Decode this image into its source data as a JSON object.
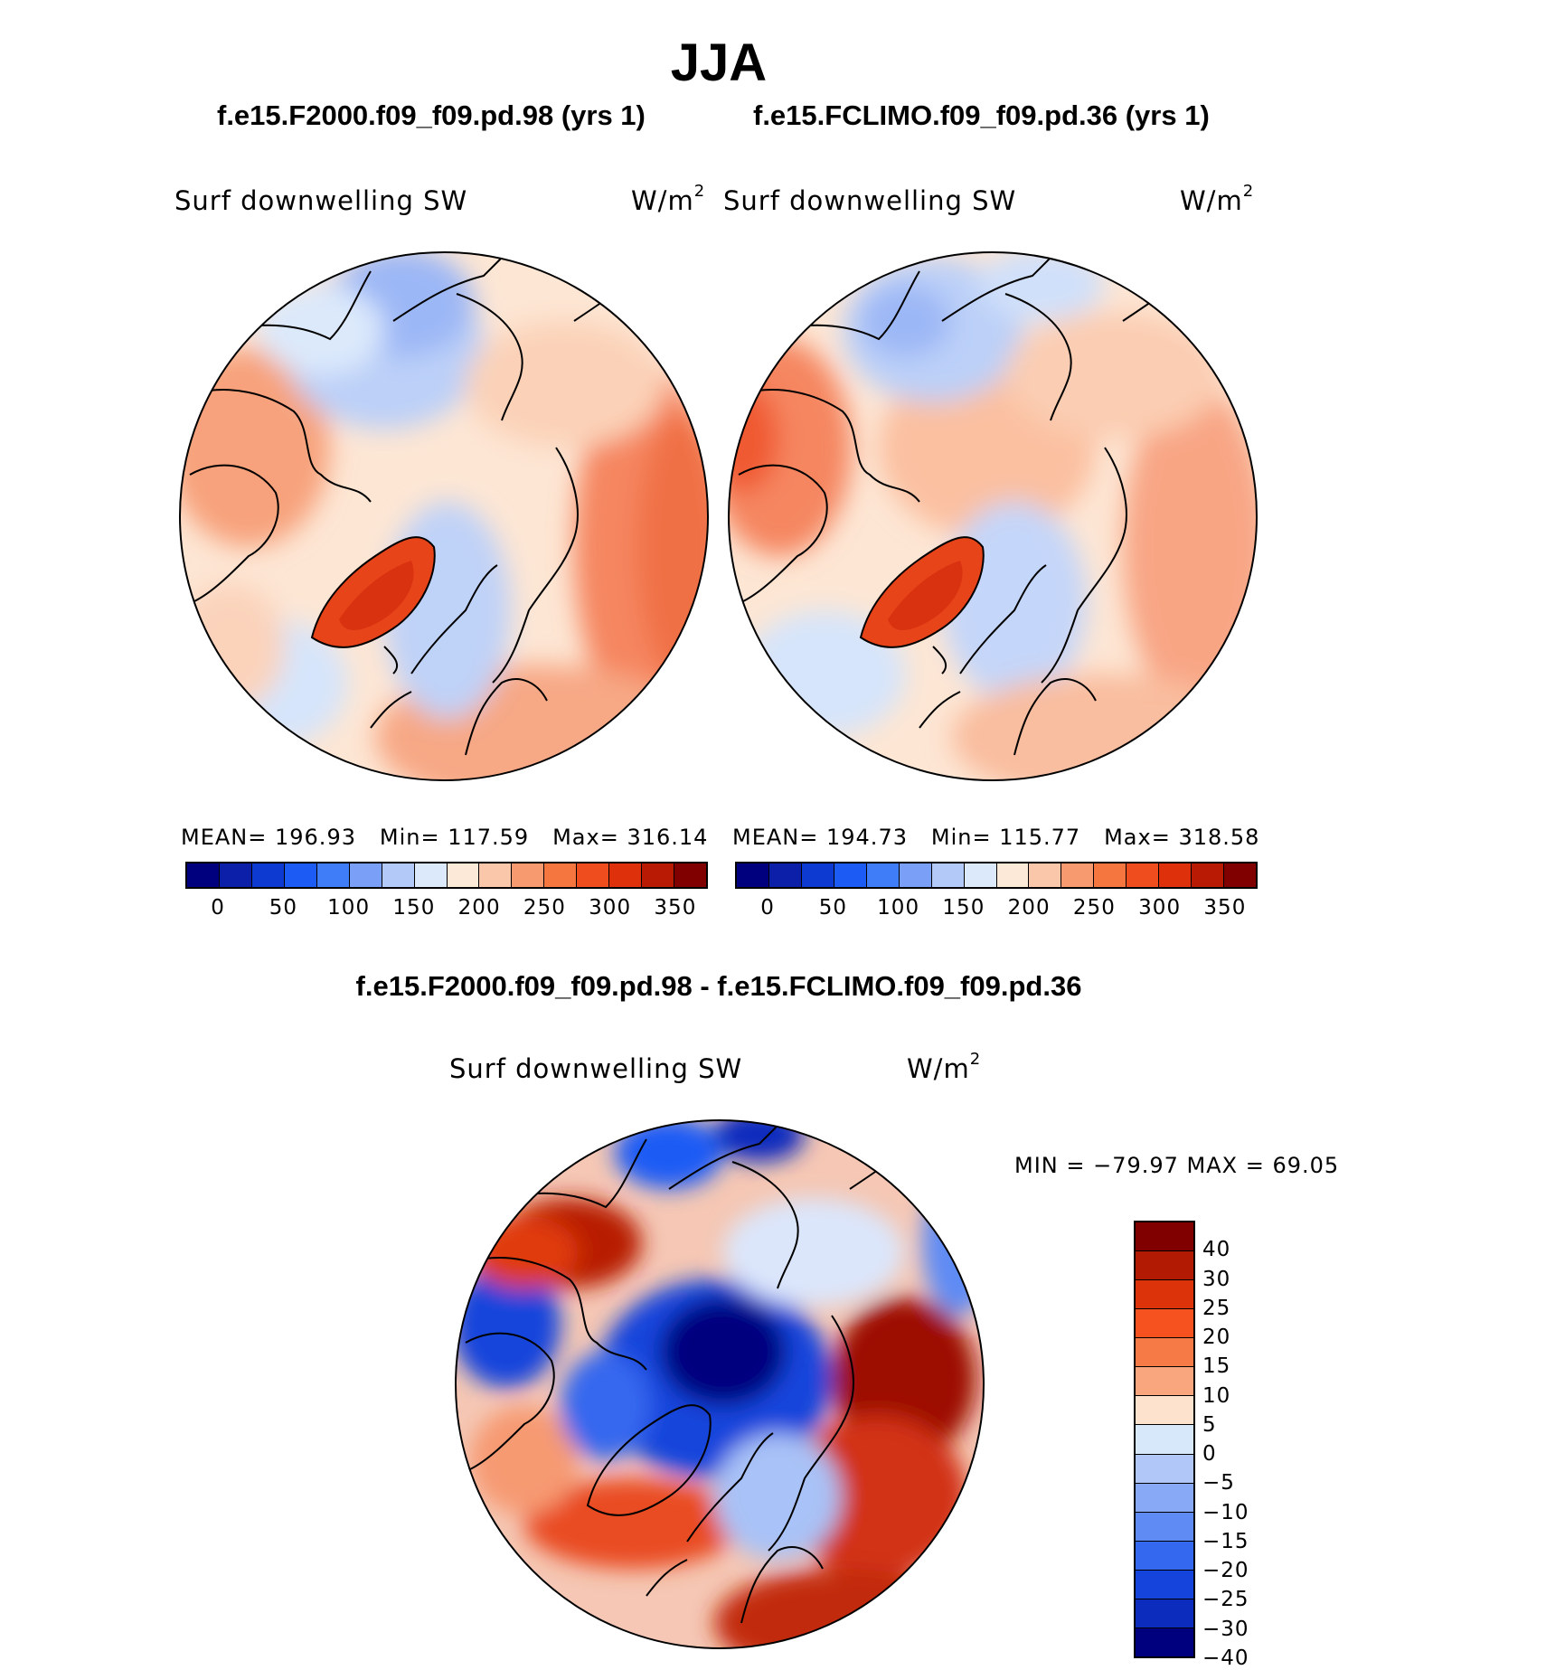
{
  "title": "JJA",
  "panel_left": {
    "case": "f.e15.F2000.f09_f09.pd.98 (yrs 1)",
    "variable": "Surf downwelling SW",
    "units_base": "W/m",
    "units_exp": "2",
    "mean_label": "MEAN=",
    "mean": "196.93",
    "min_label": "Min=",
    "min": "117.59",
    "max_label": "Max=",
    "max": "316.14"
  },
  "panel_right": {
    "case": "f.e15.FCLIMO.f09_f09.pd.36 (yrs 1)",
    "variable": "Surf downwelling SW",
    "units_base": "W/m",
    "units_exp": "2",
    "mean_label": "MEAN=",
    "mean": "194.73",
    "min_label": "Min=",
    "min": "115.77",
    "max_label": "Max=",
    "max": "318.58"
  },
  "panel_diff": {
    "case": "f.e15.F2000.f09_f09.pd.98 - f.e15.FCLIMO.f09_f09.pd.36",
    "variable": "Surf downwelling SW",
    "units_base": "W/m",
    "units_exp": "2",
    "minmax": "MIN = −79.97 MAX =   69.05"
  },
  "abs_colorbar": {
    "colors": [
      "#00007f",
      "#0b1fa8",
      "#0d3bd1",
      "#1c5cf5",
      "#3f7cf8",
      "#7a9ff7",
      "#b3c9f7",
      "#dbe9fb",
      "#fde9d8",
      "#fbc7aa",
      "#f89a6f",
      "#f5773f",
      "#f04d1f",
      "#dd300b",
      "#b81a04",
      "#800000"
    ],
    "ticks": [
      "0",
      "50",
      "100",
      "150",
      "200",
      "250",
      "300",
      "350"
    ]
  },
  "diff_colorbar": {
    "colors": [
      "#800000",
      "#b21a04",
      "#dd330b",
      "#f5521f",
      "#f57a45",
      "#f9a57e",
      "#fde3cd",
      "#d8e8fb",
      "#b0c7f7",
      "#87a9f6",
      "#5e8bf4",
      "#3468ef",
      "#1444dc",
      "#0c2cbe",
      "#00007f"
    ],
    "labels": [
      "40",
      "30",
      "25",
      "20",
      "15",
      "10",
      "5",
      "0",
      "−5",
      "−10",
      "−15",
      "−20",
      "−25",
      "−30",
      "−40"
    ]
  }
}
